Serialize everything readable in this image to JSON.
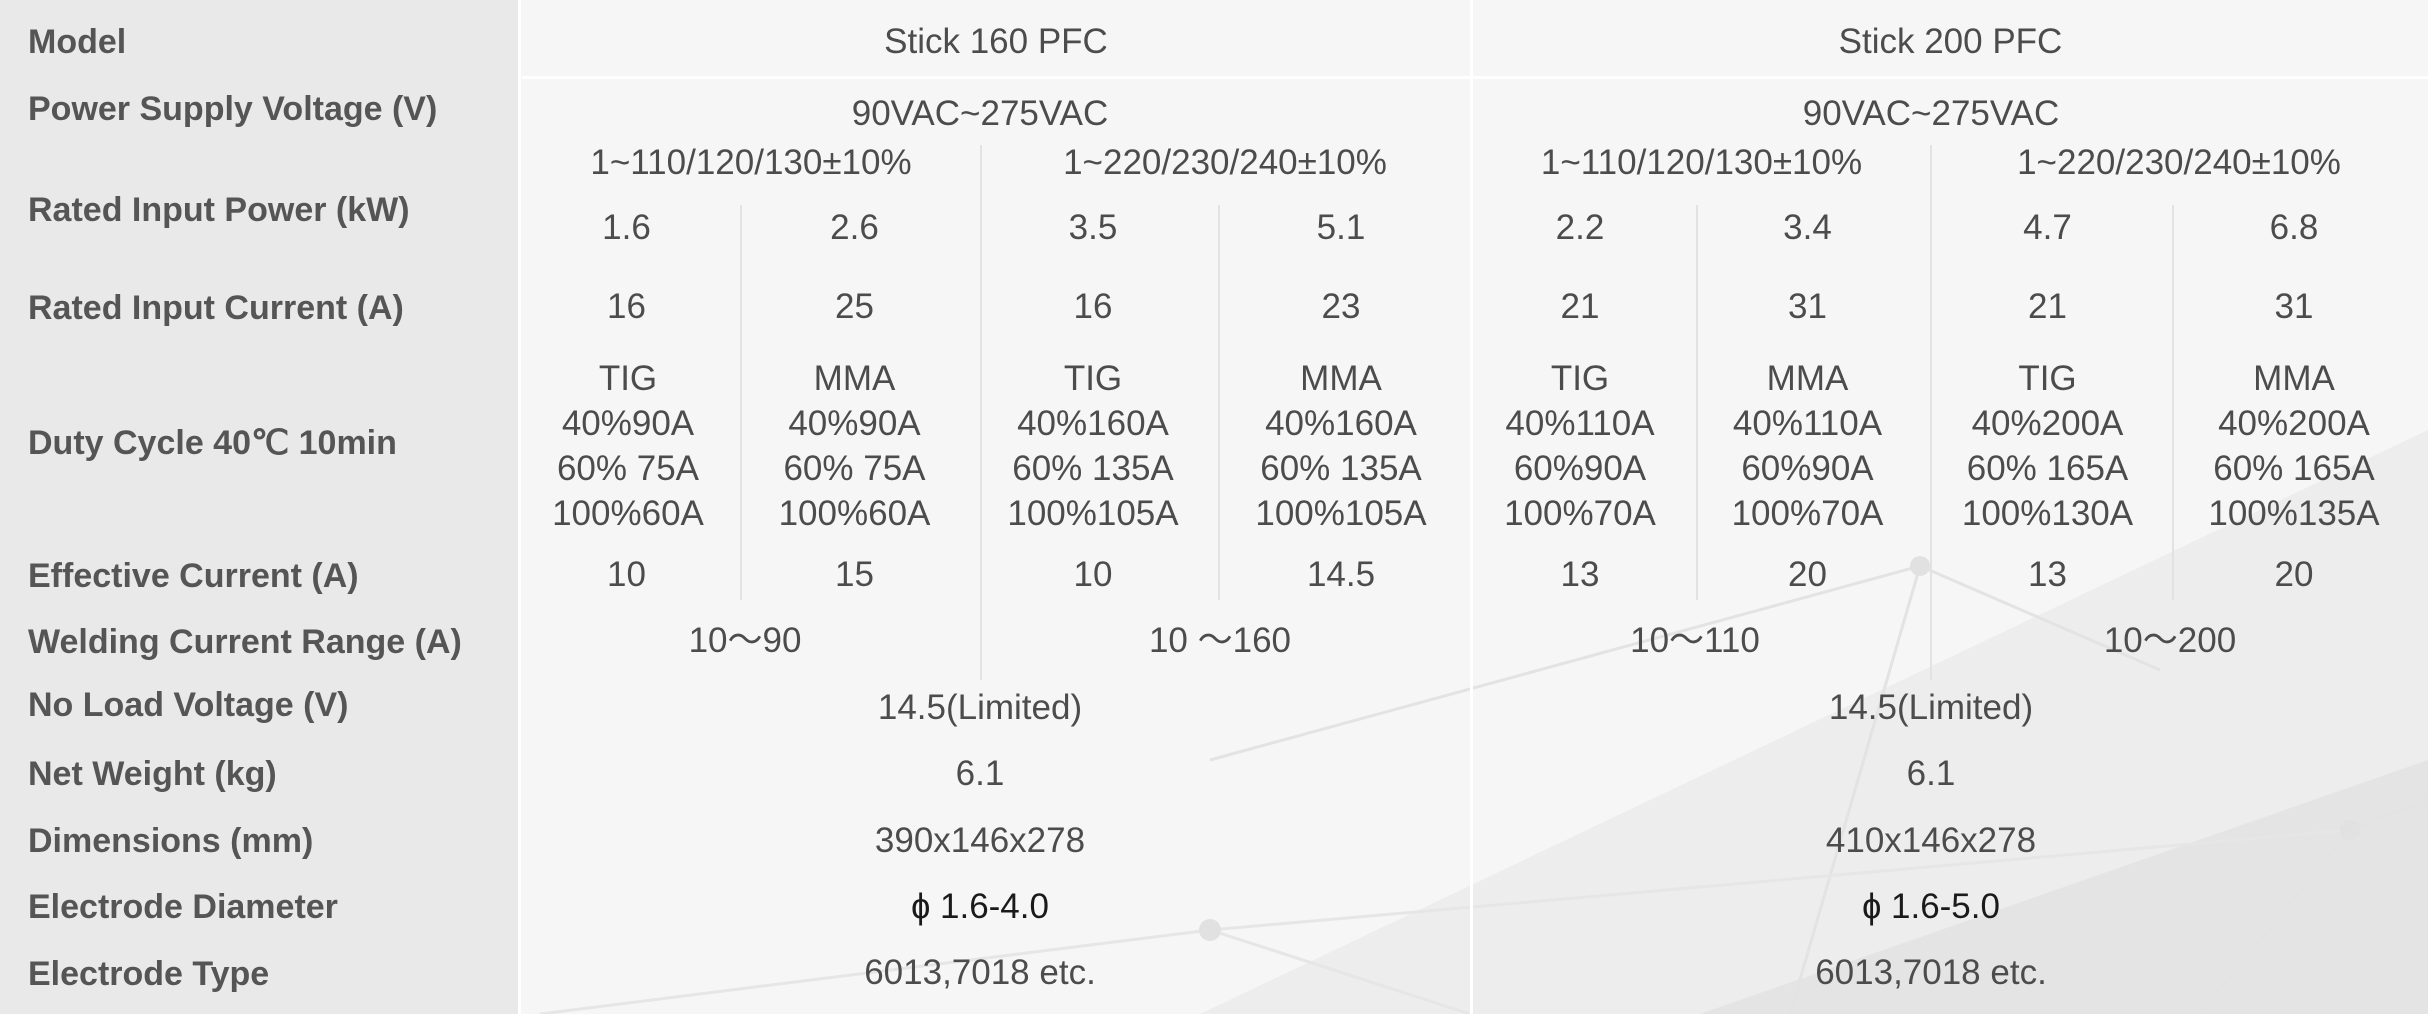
{
  "rows": {
    "model": "Model",
    "power_supply_voltage": "Power Supply Voltage (V)",
    "rated_input_power": "Rated Input Power (kW)",
    "rated_input_current": "Rated Input Current (A)",
    "duty_cycle": "Duty Cycle 40℃ 10min",
    "effective_current": "Effective Current (A)",
    "welding_current_range": "Welding Current Range (A)",
    "no_load_voltage": "No Load Voltage (V)",
    "net_weight": "Net Weight (kg)",
    "dimensions": "Dimensions (mm)",
    "electrode_diameter": "Electrode Diameter",
    "electrode_type": "Electrode Type"
  },
  "models": [
    {
      "name": "Stick 160 PFC",
      "supply_voltage": "90VAC~275VAC",
      "voltage_groups": [
        "1~110/120/130±10%",
        "1~220/230/240±10%"
      ],
      "rated_input_power": [
        "1.6",
        "2.6",
        "3.5",
        "5.1"
      ],
      "rated_input_current": [
        "16",
        "25",
        "16",
        "23"
      ],
      "duty_cycle": [
        [
          "TIG",
          "40%90A",
          "60% 75A",
          "100%60A"
        ],
        [
          "MMA",
          "40%90A",
          "60% 75A",
          "100%60A"
        ],
        [
          "TIG",
          "40%160A",
          "60% 135A",
          "100%105A"
        ],
        [
          "MMA",
          "40%160A",
          "60% 135A",
          "100%105A"
        ]
      ],
      "effective_current": [
        "10",
        "15",
        "10",
        "14.5"
      ],
      "welding_current_range": [
        "10～90",
        "10 ～160"
      ],
      "no_load_voltage": "14.5(Limited)",
      "net_weight": "6.1",
      "dimensions": "390x146x278",
      "electrode_diameter": "ɸ 1.6-4.0",
      "electrode_type": "6013,7018 etc."
    },
    {
      "name": "Stick 200 PFC",
      "supply_voltage": "90VAC~275VAC",
      "voltage_groups": [
        "1~110/120/130±10%",
        "1~220/230/240±10%"
      ],
      "rated_input_power": [
        "2.2",
        "3.4",
        "4.7",
        "6.8"
      ],
      "rated_input_current": [
        "21",
        "31",
        "21",
        "31"
      ],
      "duty_cycle": [
        [
          "TIG",
          "40%110A",
          "60%90A",
          "100%70A"
        ],
        [
          "MMA",
          "40%110A",
          "60%90A",
          "100%70A"
        ],
        [
          "TIG",
          "40%200A",
          "60% 165A",
          "100%130A"
        ],
        [
          "MMA",
          "40%200A",
          "60% 165A",
          "100%135A"
        ]
      ],
      "effective_current": [
        "13",
        "20",
        "13",
        "20"
      ],
      "welding_current_range": [
        "10～110",
        "10～200"
      ],
      "no_load_voltage": "14.5(Limited)",
      "net_weight": "6.1",
      "dimensions": "410x146x278",
      "electrode_diameter": "ɸ 1.6-5.0",
      "electrode_type": "6013,7018 etc."
    }
  ]
}
